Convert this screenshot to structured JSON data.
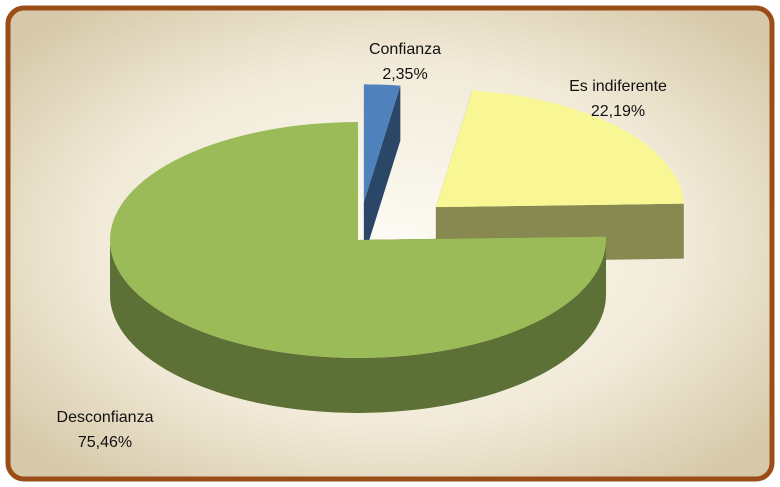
{
  "chart_data": {
    "type": "pie",
    "categories": [
      "Confianza",
      "Es indiferente",
      "Desconfianza"
    ],
    "values": [
      2.35,
      22.19,
      75.46
    ],
    "value_labels": [
      "2,35%",
      "22,19%",
      "75,46%"
    ],
    "colors": [
      "#4f81bd",
      "#f8f793",
      "#9bbb59"
    ]
  }
}
